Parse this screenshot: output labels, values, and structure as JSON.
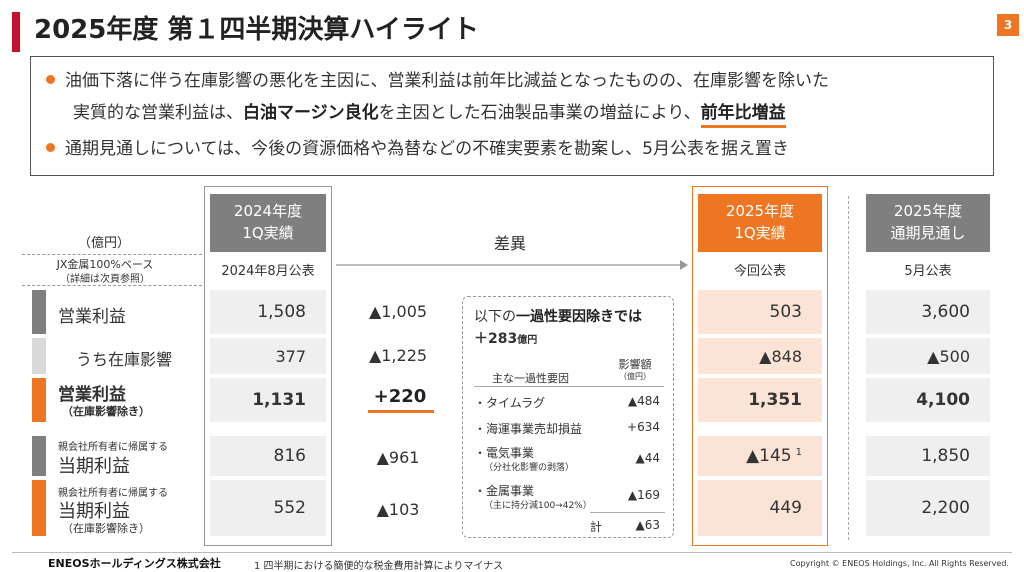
{
  "header": {
    "title": "2025年度 第１四半期決算ハイライト",
    "page_number": "3"
  },
  "highlights": {
    "b1_l1": "油価下落に伴う在庫影響の悪化を主因に、営業利益は前年比減益となったものの、在庫影響を除いた",
    "b1_l2_a": "実質的な営業利益は、",
    "b1_l2_b": "白油マージン良化",
    "b1_l2_c": "を主因とした石油製品事業の増益により、",
    "b1_l2_d": "前年比増益",
    "b2": "通期見通しについては、今後の資源価格や為替などの不確実要素を勘案し、5月公表を据え置き"
  },
  "table": {
    "unit": "（億円）",
    "basis_l1": "JX金属100%ベース",
    "basis_l2": "（詳細は次頁参照）",
    "col_2024": {
      "h1": "2024年度",
      "h2": "1Q実績",
      "sub": "2024年8月公表"
    },
    "col_diff": {
      "h": "差異"
    },
    "col_2025": {
      "h1": "2025年度",
      "h2": "1Q実績",
      "sub": "今回公表"
    },
    "col_fy": {
      "h1": "2025年度",
      "h2": "通期見通し",
      "sub": "5月公表"
    },
    "rows": [
      {
        "label": "営業利益",
        "v2024": "1,508",
        "diff": "▲1,005",
        "v2025": "503",
        "vfy": "3,600"
      },
      {
        "label": "うち在庫影響",
        "v2024": "377",
        "diff": "▲1,225",
        "v2025": "▲848",
        "vfy": "▲500"
      },
      {
        "label": "営業利益",
        "label_sub": "（在庫影響除き）",
        "v2024": "1,131",
        "diff": "+220",
        "v2025": "1,351",
        "vfy": "4,100"
      },
      {
        "label_pre": "親会社所有者に帰属する",
        "label": "当期利益",
        "v2024": "816",
        "diff": "▲961",
        "v2025": "▲145",
        "v2025_note": "1",
        "vfy": "1,850"
      },
      {
        "label_pre": "親会社所有者に帰属する",
        "label": "当期利益",
        "label_sub": "（在庫影響除き）",
        "v2024": "552",
        "diff": "▲103",
        "v2025": "449",
        "vfy": "2,200"
      }
    ]
  },
  "one_time": {
    "t1_a": "以下の",
    "t1_b": "一過性要因除きでは",
    "t2": "＋283",
    "t2_unit": "億円",
    "col1": "主な一過性要因",
    "col2": "影響額",
    "col2_unit": "（億円）",
    "items": [
      {
        "name": "・タイムラグ",
        "value": "▲484"
      },
      {
        "name": "・海運事業売却損益",
        "value": "+634"
      },
      {
        "name": "・電気事業",
        "sub": "（分社化影響の剥落）",
        "value": "▲44"
      },
      {
        "name": "・金属事業",
        "sub": "（主に持分減100→42%）",
        "value": "▲169"
      }
    ],
    "total_label": "計",
    "total": "▲63"
  },
  "footer": {
    "logo": "ENEOSホールディングス株式会社",
    "note": "1 四半期における簡便的な税金費用計算によりマイナス",
    "copyright": "Copyright © ENEOS Holdings, Inc. All Rights Reserved."
  }
}
